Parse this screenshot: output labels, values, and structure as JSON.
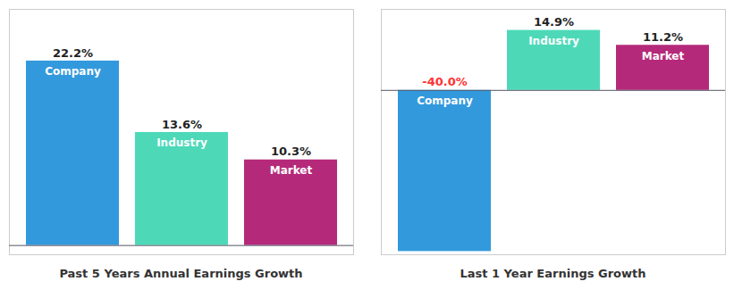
{
  "chart_data": [
    {
      "type": "bar",
      "title": "Past 5 Years Annual Earnings Growth",
      "categories": [
        "Company",
        "Industry",
        "Market"
      ],
      "values": [
        22.2,
        13.6,
        10.3
      ],
      "value_labels": [
        "22.2%",
        "13.6%",
        "10.3%"
      ],
      "colors": [
        "#3399dd",
        "#4dd9b8",
        "#b5297a"
      ],
      "ylim": [
        -1.11,
        28.416
      ],
      "data_labels": true,
      "tick_labels": false,
      "grid": false
    },
    {
      "type": "bar",
      "title": "Last 1 Year Earnings Growth",
      "categories": [
        "Company",
        "Industry",
        "Market"
      ],
      "values": [
        -40.0,
        14.9,
        11.2
      ],
      "value_labels": [
        "-40.0%",
        "14.9%",
        "11.2%"
      ],
      "colors": [
        "#3399dd",
        "#4dd9b8",
        "#b5297a"
      ],
      "ylim": [
        -40.8,
        20.115
      ],
      "data_labels": true,
      "tick_labels": false,
      "grid": false
    }
  ]
}
